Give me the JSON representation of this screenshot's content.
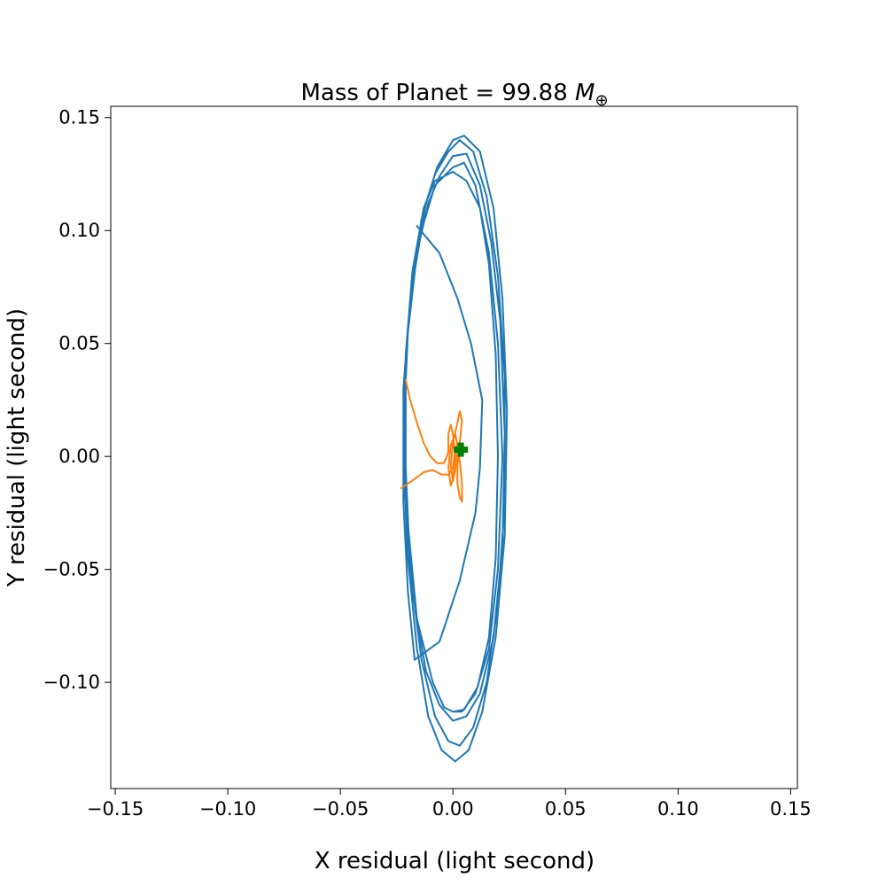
{
  "chart_data": {
    "type": "line",
    "title_prefix": "Mass of Planet = 99.88 ",
    "title_symbol": "M",
    "title_subscript": "⊕",
    "xlabel": "X residual (light second)",
    "ylabel": "Y residual (light second)",
    "xlim": [
      -0.152,
      0.153
    ],
    "ylim": [
      -0.147,
      0.155
    ],
    "xticks": [
      -0.15,
      -0.1,
      -0.05,
      0.0,
      0.05,
      0.1,
      0.15
    ],
    "xtick_labels": [
      "−0.15",
      "−0.10",
      "−0.05",
      "0.00",
      "0.05",
      "0.10",
      "0.15"
    ],
    "yticks": [
      -0.1,
      -0.05,
      0.0,
      0.05,
      0.1,
      0.15
    ],
    "ytick_labels": [
      "−0.10",
      "−0.05",
      "0.00",
      "0.05",
      "0.10",
      "0.15"
    ],
    "series": [
      {
        "color": "#1f77b4",
        "points": [
          [
            -0.016,
            0.102
          ],
          [
            -0.006,
            0.09
          ],
          [
            0.002,
            0.07
          ],
          [
            0.008,
            0.05
          ],
          [
            0.013,
            0.025
          ],
          [
            0.012,
            -0.005
          ],
          [
            0.01,
            -0.025
          ],
          [
            0.003,
            -0.055
          ],
          [
            -0.006,
            -0.082
          ],
          [
            -0.017,
            -0.09
          ],
          [
            -0.02,
            -0.06
          ],
          [
            -0.022,
            -0.02
          ],
          [
            -0.022,
            0.03
          ],
          [
            -0.019,
            0.07
          ],
          [
            -0.014,
            0.1
          ],
          [
            -0.008,
            0.12
          ],
          [
            0.0,
            0.128
          ],
          [
            0.005,
            0.13
          ],
          [
            0.01,
            0.12
          ],
          [
            0.016,
            0.09
          ],
          [
            0.02,
            0.05
          ],
          [
            0.022,
            0.0
          ],
          [
            0.02,
            -0.05
          ],
          [
            0.016,
            -0.085
          ],
          [
            0.01,
            -0.105
          ],
          [
            0.004,
            -0.113
          ],
          [
            0.0,
            -0.113
          ],
          [
            -0.004,
            -0.111
          ],
          [
            -0.009,
            -0.1
          ],
          [
            -0.016,
            -0.072
          ],
          [
            -0.02,
            -0.03
          ],
          [
            -0.022,
            0.01
          ],
          [
            -0.02,
            0.055
          ],
          [
            -0.016,
            0.09
          ],
          [
            -0.011,
            0.112
          ],
          [
            -0.006,
            0.124
          ],
          [
            0.0,
            0.133
          ],
          [
            0.006,
            0.134
          ],
          [
            0.012,
            0.12
          ],
          [
            0.017,
            0.095
          ],
          [
            0.021,
            0.06
          ],
          [
            0.023,
            0.01
          ],
          [
            0.022,
            -0.04
          ],
          [
            0.018,
            -0.08
          ],
          [
            0.012,
            -0.105
          ],
          [
            0.006,
            -0.115
          ],
          [
            0.0,
            -0.117
          ],
          [
            -0.006,
            -0.11
          ],
          [
            -0.012,
            -0.095
          ],
          [
            -0.018,
            -0.06
          ],
          [
            -0.021,
            -0.02
          ],
          [
            -0.022,
            0.03
          ],
          [
            -0.019,
            0.07
          ],
          [
            -0.014,
            0.105
          ],
          [
            -0.008,
            0.125
          ],
          [
            -0.002,
            0.135
          ],
          [
            0.003,
            0.14
          ],
          [
            0.009,
            0.135
          ],
          [
            0.015,
            0.115
          ],
          [
            0.02,
            0.08
          ],
          [
            0.023,
            0.035
          ],
          [
            0.023,
            -0.02
          ],
          [
            0.02,
            -0.065
          ],
          [
            0.015,
            -0.1
          ],
          [
            0.009,
            -0.12
          ],
          [
            0.003,
            -0.128
          ],
          [
            -0.002,
            -0.126
          ],
          [
            -0.008,
            -0.115
          ],
          [
            -0.014,
            -0.09
          ],
          [
            -0.019,
            -0.05
          ],
          [
            -0.021,
            -0.005
          ],
          [
            -0.021,
            0.045
          ],
          [
            -0.017,
            0.085
          ],
          [
            -0.012,
            0.112
          ],
          [
            -0.007,
            0.128
          ],
          [
            0.0,
            0.14
          ],
          [
            0.005,
            0.142
          ],
          [
            0.012,
            0.135
          ],
          [
            0.018,
            0.11
          ],
          [
            0.022,
            0.07
          ],
          [
            0.024,
            0.02
          ],
          [
            0.023,
            -0.035
          ],
          [
            0.019,
            -0.08
          ],
          [
            0.013,
            -0.113
          ],
          [
            0.007,
            -0.13
          ],
          [
            0.001,
            -0.135
          ],
          [
            -0.005,
            -0.13
          ],
          [
            -0.011,
            -0.115
          ],
          [
            -0.016,
            -0.085
          ],
          [
            -0.02,
            -0.045
          ],
          [
            -0.022,
            0.0
          ],
          [
            -0.021,
            0.045
          ],
          [
            -0.018,
            0.082
          ],
          [
            -0.013,
            0.11
          ],
          [
            -0.008,
            0.122
          ],
          [
            0.0,
            0.126
          ],
          [
            0.006,
            0.122
          ],
          [
            0.012,
            0.11
          ],
          [
            0.016,
            0.085
          ],
          [
            0.019,
            0.045
          ],
          [
            0.02,
            0.0
          ],
          [
            0.019,
            -0.045
          ],
          [
            0.016,
            -0.08
          ],
          [
            0.011,
            -0.102
          ],
          [
            0.005,
            -0.112
          ],
          [
            0.0,
            -0.113
          ]
        ]
      },
      {
        "color": "#ff7f0e",
        "points": [
          [
            -0.021,
            0.034
          ],
          [
            -0.019,
            0.025
          ],
          [
            -0.016,
            0.015
          ],
          [
            -0.013,
            0.006
          ],
          [
            -0.01,
            0.0
          ],
          [
            -0.007,
            -0.003
          ],
          [
            -0.004,
            -0.003
          ],
          [
            -0.002,
            0.002
          ],
          [
            -0.002,
            0.01
          ],
          [
            -0.001,
            0.014
          ],
          [
            0.0,
            0.01
          ],
          [
            0.001,
            0.0
          ],
          [
            0.0,
            -0.01
          ],
          [
            -0.001,
            -0.013
          ],
          [
            -0.002,
            -0.005
          ],
          [
            -0.001,
            0.005
          ],
          [
            0.001,
            0.01
          ],
          [
            0.002,
            0.005
          ],
          [
            0.001,
            -0.006
          ],
          [
            0.0,
            -0.011
          ],
          [
            -0.001,
            -0.004
          ],
          [
            0.0,
            0.006
          ],
          [
            0.002,
            0.015
          ],
          [
            0.003,
            0.02
          ],
          [
            0.004,
            0.016
          ],
          [
            0.003,
            0.006
          ],
          [
            0.002,
            -0.004
          ],
          [
            0.002,
            -0.012
          ],
          [
            0.003,
            -0.018
          ],
          [
            0.004,
            -0.02
          ],
          [
            0.004,
            -0.012
          ],
          [
            0.003,
            -0.002
          ],
          [
            0.002,
            0.006
          ],
          [
            0.001,
            0.003
          ],
          [
            0.0,
            -0.005
          ],
          [
            -0.002,
            -0.008
          ],
          [
            -0.005,
            -0.008
          ],
          [
            -0.009,
            -0.006
          ],
          [
            -0.013,
            -0.007
          ],
          [
            -0.017,
            -0.01
          ],
          [
            -0.02,
            -0.012
          ],
          [
            -0.023,
            -0.014
          ]
        ]
      }
    ],
    "marker": {
      "color": "#008000",
      "symbol": "plus",
      "x": 0.0035,
      "y": 0.003
    }
  }
}
